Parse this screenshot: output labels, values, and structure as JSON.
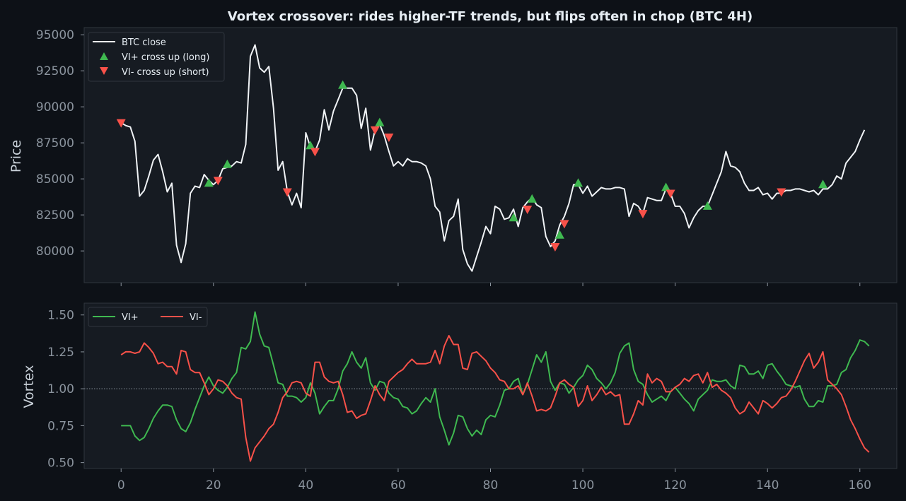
{
  "title": "Vortex crossover: rides higher-TF trends, but flips often in chop (BTC 4H)",
  "colors": {
    "background": "#0d1117",
    "panel": "#161b22",
    "text": "#c9d1d9",
    "title": "#e6edf3",
    "price": "#f0f3f6",
    "vi_plus": "#3fb950",
    "vi_minus": "#f85149",
    "axis": "#30363d"
  },
  "chart_data": [
    {
      "type": "line",
      "panel": "price",
      "title": "Vortex crossover: rides higher-TF trends, but flips often in chop (BTC 4H)",
      "xlabel": "",
      "ylabel": "Price",
      "xlim": [
        -8,
        168
      ],
      "ylim": [
        77800,
        95500
      ],
      "yticks": [
        80000,
        82500,
        85000,
        87500,
        90000,
        92500,
        95000
      ],
      "ytick_labels": [
        "80000",
        "82500",
        "85000",
        "87500",
        "90000",
        "92500",
        "95000"
      ],
      "grid": false,
      "legend_position": "top-left",
      "legend": [
        "BTC close",
        "VI+ cross up (long)",
        "VI- cross up (short)"
      ],
      "series": [
        {
          "name": "BTC close",
          "x_start": 0,
          "values": [
            88900,
            88700,
            88600,
            87600,
            83800,
            84200,
            85200,
            86300,
            86700,
            85500,
            84100,
            84700,
            80400,
            79200,
            80500,
            84000,
            84500,
            84400,
            85300,
            84900,
            84600,
            84900,
            85700,
            85800,
            85900,
            86200,
            86100,
            87400,
            93500,
            94300,
            92700,
            92400,
            92800,
            89900,
            85600,
            86200,
            84100,
            83200,
            84000,
            83000,
            88200,
            87200,
            86900,
            87700,
            89800,
            88400,
            89700,
            90500,
            91300,
            91300,
            91300,
            90800,
            88500,
            89900,
            87000,
            88400,
            88800,
            88000,
            86900,
            85900,
            86200,
            85900,
            86400,
            86200,
            86200,
            86100,
            85900,
            85000,
            83100,
            82700,
            80700,
            82100,
            82400,
            83600,
            80100,
            79100,
            78600,
            79600,
            80600,
            81700,
            81200,
            83100,
            82900,
            82200,
            82300,
            82900,
            81700,
            83000,
            83400,
            83700,
            83200,
            83000,
            81000,
            80300,
            80700,
            81800,
            82400,
            83300,
            84600,
            84600,
            84000,
            84500,
            83800,
            84100,
            84400,
            84300,
            84300,
            84400,
            84400,
            84300,
            82400,
            83300,
            83100,
            82600,
            83700,
            83600,
            83500,
            83500,
            84300,
            84000,
            83100,
            83100,
            82600,
            81600,
            82300,
            82800,
            83100,
            83100,
            83900,
            84700,
            85500,
            86900,
            85900,
            85800,
            85500,
            84700,
            84200,
            84200,
            84400,
            83900,
            84000,
            83600,
            84000,
            84000,
            84200,
            84200,
            84300,
            84300,
            84200,
            84100,
            84200,
            83900,
            84300,
            84300,
            84600,
            85200,
            85000,
            86100,
            86500,
            86900,
            87700,
            88400
          ]
        }
      ],
      "markers": {
        "VI+ cross up (long)": [
          {
            "x": 19,
            "y": 84700
          },
          {
            "x": 23,
            "y": 86000
          },
          {
            "x": 41,
            "y": 87300
          },
          {
            "x": 48,
            "y": 91500
          },
          {
            "x": 56,
            "y": 88900
          },
          {
            "x": 85,
            "y": 82300
          },
          {
            "x": 89,
            "y": 83600
          },
          {
            "x": 95,
            "y": 81100
          },
          {
            "x": 99,
            "y": 84700
          },
          {
            "x": 118,
            "y": 84400
          },
          {
            "x": 127,
            "y": 83100
          },
          {
            "x": 152,
            "y": 84600
          }
        ],
        "VI- cross up (short)": [
          {
            "x": 0,
            "y": 88900
          },
          {
            "x": 21,
            "y": 84900
          },
          {
            "x": 36,
            "y": 84100
          },
          {
            "x": 42,
            "y": 86900
          },
          {
            "x": 55,
            "y": 88400
          },
          {
            "x": 58,
            "y": 87900
          },
          {
            "x": 88,
            "y": 82900
          },
          {
            "x": 94,
            "y": 80300
          },
          {
            "x": 96,
            "y": 81900
          },
          {
            "x": 113,
            "y": 82600
          },
          {
            "x": 119,
            "y": 84000
          },
          {
            "x": 143,
            "y": 84100
          }
        ]
      }
    },
    {
      "type": "line",
      "panel": "vortex",
      "xlabel": "",
      "ylabel": "Vortex",
      "xlim": [
        -8,
        168
      ],
      "ylim": [
        0.46,
        1.58
      ],
      "xticks": [
        0,
        20,
        40,
        60,
        80,
        100,
        120,
        140,
        160
      ],
      "xtick_labels": [
        "0",
        "20",
        "40",
        "60",
        "80",
        "100",
        "120",
        "140",
        "160"
      ],
      "yticks": [
        0.5,
        0.75,
        1.0,
        1.25,
        1.5
      ],
      "ytick_labels": [
        "0.50",
        "0.75",
        "1.00",
        "1.25",
        "1.50"
      ],
      "reference_line": 1.0,
      "grid": false,
      "legend_position": "top-left",
      "legend": [
        "VI+",
        "VI-"
      ],
      "series": [
        {
          "name": "VI+",
          "x_start": 0,
          "values": [
            0.75,
            0.75,
            0.75,
            0.68,
            0.65,
            0.67,
            0.73,
            0.8,
            0.85,
            0.89,
            0.89,
            0.88,
            0.79,
            0.73,
            0.71,
            0.77,
            0.86,
            0.94,
            1.02,
            1.08,
            1.02,
            0.99,
            0.97,
            1.01,
            1.07,
            1.11,
            1.28,
            1.27,
            1.32,
            1.52,
            1.37,
            1.29,
            1.28,
            1.16,
            1.04,
            1.03,
            0.95,
            0.95,
            0.94,
            0.91,
            0.94,
            1.04,
            0.97,
            0.83,
            0.88,
            0.92,
            0.92,
            1.0,
            1.12,
            1.17,
            1.25,
            1.18,
            1.14,
            1.21,
            1.04,
            0.99,
            1.05,
            1.04,
            0.97,
            0.94,
            0.93,
            0.88,
            0.87,
            0.83,
            0.85,
            0.9,
            0.94,
            0.91,
            1.0,
            0.81,
            0.72,
            0.62,
            0.7,
            0.82,
            0.81,
            0.73,
            0.68,
            0.72,
            0.69,
            0.79,
            0.82,
            0.81,
            0.89,
            0.99,
            1.0,
            1.05,
            1.07,
            0.96,
            1.03,
            1.13,
            1.23,
            1.18,
            1.25,
            1.05,
            0.99,
            1.04,
            1.03,
            0.97,
            1.01,
            1.06,
            1.09,
            1.16,
            1.13,
            1.07,
            1.04,
            1.0,
            1.04,
            1.11,
            1.24,
            1.29,
            1.31,
            1.13,
            1.05,
            1.03,
            0.96,
            0.91,
            0.93,
            0.95,
            0.92,
            0.98,
            1.01,
            0.97,
            0.93,
            0.9,
            0.85,
            0.93,
            0.96,
            0.99,
            1.06,
            1.05,
            1.05,
            1.06,
            1.02,
            1.0,
            1.16,
            1.15,
            1.1,
            1.1,
            1.12,
            1.07,
            1.16,
            1.17,
            1.12,
            1.08,
            1.03,
            1.02,
            1.01,
            1.02,
            0.93,
            0.88,
            0.88,
            0.92,
            0.91,
            1.02,
            1.02,
            1.03,
            1.11,
            1.13,
            1.21,
            1.26,
            1.33,
            1.32,
            1.29
          ]
        },
        {
          "name": "VI-",
          "x_start": 0,
          "values": [
            1.23,
            1.25,
            1.25,
            1.24,
            1.25,
            1.31,
            1.28,
            1.24,
            1.17,
            1.18,
            1.15,
            1.15,
            1.1,
            1.26,
            1.25,
            1.13,
            1.11,
            1.11,
            1.04,
            0.96,
            1.0,
            1.06,
            1.05,
            1.02,
            0.97,
            0.94,
            0.93,
            0.67,
            0.51,
            0.6,
            0.64,
            0.68,
            0.73,
            0.76,
            0.84,
            0.94,
            0.98,
            1.04,
            1.05,
            1.04,
            0.97,
            0.95,
            1.18,
            1.18,
            1.08,
            1.05,
            1.04,
            1.05,
            0.96,
            0.84,
            0.85,
            0.8,
            0.82,
            0.83,
            0.92,
            1.02,
            0.96,
            0.92,
            1.05,
            1.08,
            1.11,
            1.13,
            1.17,
            1.2,
            1.17,
            1.17,
            1.17,
            1.18,
            1.26,
            1.17,
            1.29,
            1.36,
            1.3,
            1.3,
            1.14,
            1.13,
            1.24,
            1.25,
            1.22,
            1.19,
            1.14,
            1.11,
            1.06,
            1.05,
            1.0,
            1.0,
            1.02,
            0.96,
            1.04,
            0.95,
            0.85,
            0.86,
            0.85,
            0.87,
            0.95,
            1.04,
            1.06,
            1.03,
            1.01,
            0.88,
            0.92,
            1.02,
            0.92,
            0.96,
            1.01,
            0.96,
            0.98,
            0.95,
            0.96,
            0.76,
            0.76,
            0.83,
            0.92,
            0.89,
            1.1,
            1.04,
            1.07,
            1.05,
            0.98,
            0.98,
            1.01,
            1.03,
            1.07,
            1.05,
            1.09,
            1.1,
            1.04,
            1.11,
            1.01,
            1.03,
            0.99,
            0.97,
            0.94,
            0.87,
            0.83,
            0.85,
            0.91,
            0.87,
            0.83,
            0.92,
            0.9,
            0.87,
            0.9,
            0.94,
            0.95,
            0.99,
            1.05,
            1.12,
            1.19,
            1.24,
            1.14,
            1.18,
            1.25,
            1.06,
            1.03,
            1.0,
            0.96,
            0.88,
            0.79,
            0.73,
            0.66,
            0.6,
            0.57
          ]
        }
      ]
    }
  ]
}
